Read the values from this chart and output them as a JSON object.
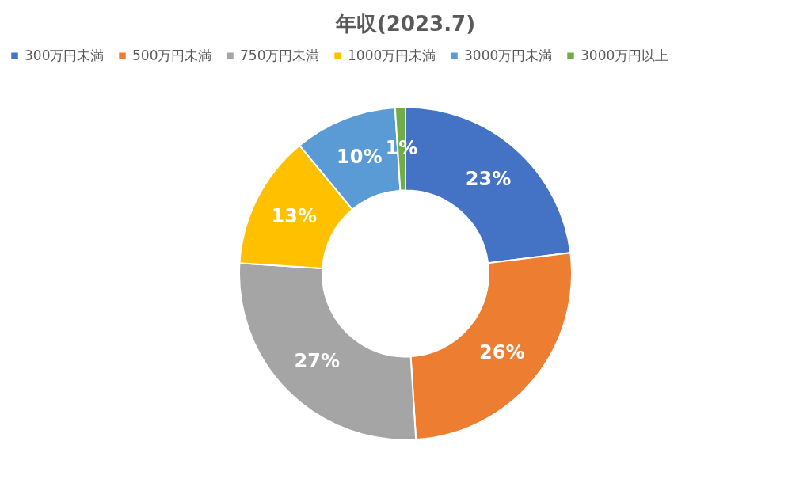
{
  "chart_data": {
    "type": "donut",
    "title": "年収(2023.7)",
    "categories": [
      "300万円未満",
      "500万円未満",
      "750万円未満",
      "1000万円未満",
      "3000万円未満",
      "3000万円以上"
    ],
    "values": [
      23,
      26,
      27,
      13,
      10,
      1
    ],
    "colors": [
      "#4472c4",
      "#ed7d31",
      "#a5a5a5",
      "#ffc000",
      "#5b9bd5",
      "#70ad47"
    ],
    "value_labels": [
      "23%",
      "26%",
      "27%",
      "13%",
      "10%",
      "1%"
    ],
    "legend": "top"
  }
}
